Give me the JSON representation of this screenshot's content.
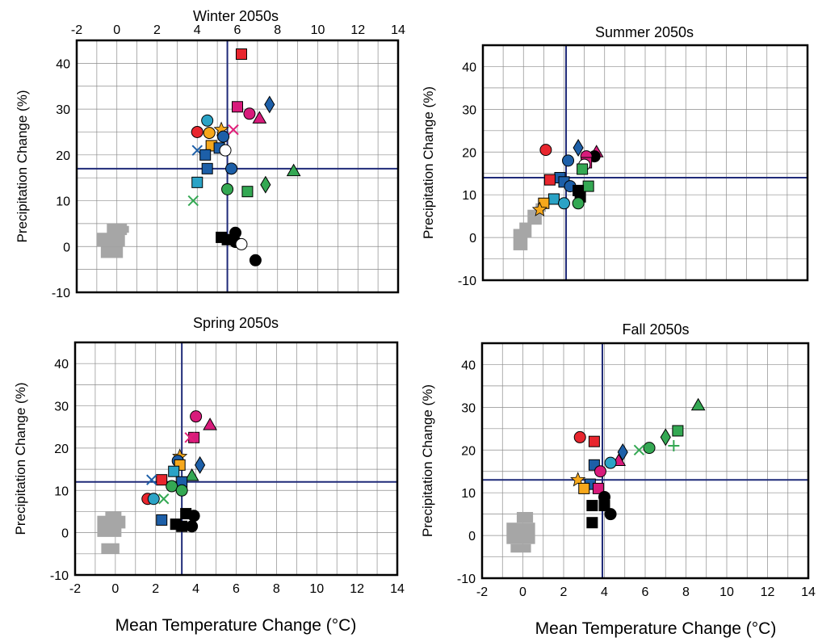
{
  "labels": {
    "y_axis": "Precipitation Change (%)",
    "x_axis": "Mean Temperature Change (°C)"
  },
  "x_ticks": [
    "-2",
    "0",
    "2",
    "4",
    "6",
    "8",
    "10",
    "12",
    "14"
  ],
  "y_ticks": [
    "-10",
    "0",
    "10",
    "20",
    "30",
    "40"
  ],
  "colors": {
    "red": "#e8262e",
    "magenta": "#d81b7b",
    "pink": "#e0207a",
    "blue": "#1d5fa8",
    "cyan": "#2ba3c6",
    "orange": "#f6a81c",
    "green": "#34a853",
    "black": "#000000",
    "gray": "#a6a6a6",
    "line": "#1f2a78"
  },
  "chart_data": [
    {
      "type": "scatter",
      "title": "Winter 2050s",
      "xlim": [
        -2,
        14
      ],
      "ylim": [
        -10,
        45
      ],
      "x_ticks_shown": "top",
      "ref_lines": {
        "x": 5.5,
        "y": 17
      },
      "points": [
        {
          "x": 6.2,
          "y": 42,
          "shape": "square",
          "color": "red"
        },
        {
          "x": 6.0,
          "y": 30.5,
          "shape": "square",
          "color": "magenta"
        },
        {
          "x": 6.6,
          "y": 29,
          "shape": "circle",
          "color": "magenta"
        },
        {
          "x": 7.1,
          "y": 28,
          "shape": "triangle",
          "color": "magenta"
        },
        {
          "x": 5.8,
          "y": 25.5,
          "shape": "x",
          "color": "pink"
        },
        {
          "x": 7.6,
          "y": 31,
          "shape": "diamond",
          "color": "blue"
        },
        {
          "x": 4.5,
          "y": 27.5,
          "shape": "circle",
          "color": "cyan"
        },
        {
          "x": 4.0,
          "y": 25,
          "shape": "circle",
          "color": "red"
        },
        {
          "x": 4.6,
          "y": 24.8,
          "shape": "circle",
          "color": "orange"
        },
        {
          "x": 5.2,
          "y": 25.5,
          "shape": "star",
          "color": "orange"
        },
        {
          "x": 5.3,
          "y": 24,
          "shape": "circle",
          "color": "blue"
        },
        {
          "x": 4.7,
          "y": 22,
          "shape": "square",
          "color": "orange"
        },
        {
          "x": 4.0,
          "y": 21,
          "shape": "x",
          "color": "blue"
        },
        {
          "x": 5.1,
          "y": 21.5,
          "shape": "square",
          "color": "blue"
        },
        {
          "x": 5.4,
          "y": 21,
          "shape": "circle",
          "color": "white"
        },
        {
          "x": 4.4,
          "y": 20,
          "shape": "square",
          "color": "blue"
        },
        {
          "x": 4.5,
          "y": 17,
          "shape": "square",
          "color": "blue"
        },
        {
          "x": 5.7,
          "y": 17,
          "shape": "circle",
          "color": "blue"
        },
        {
          "x": 8.8,
          "y": 16.5,
          "shape": "triangle",
          "color": "green"
        },
        {
          "x": 4.0,
          "y": 14,
          "shape": "square",
          "color": "cyan"
        },
        {
          "x": 7.4,
          "y": 13.5,
          "shape": "diamond",
          "color": "green"
        },
        {
          "x": 5.5,
          "y": 12.5,
          "shape": "circle",
          "color": "green"
        },
        {
          "x": 6.5,
          "y": 12,
          "shape": "square",
          "color": "green"
        },
        {
          "x": 3.8,
          "y": 10,
          "shape": "x",
          "color": "green"
        },
        {
          "x": 5.2,
          "y": 2,
          "shape": "square",
          "color": "black"
        },
        {
          "x": 5.5,
          "y": 1.5,
          "shape": "square",
          "color": "black"
        },
        {
          "x": 5.9,
          "y": 3,
          "shape": "circle",
          "color": "black"
        },
        {
          "x": 5.9,
          "y": 1,
          "shape": "circle",
          "color": "black"
        },
        {
          "x": 6.2,
          "y": 0.5,
          "shape": "circle",
          "color": "white"
        },
        {
          "x": 6.9,
          "y": -3,
          "shape": "circle",
          "color": "black"
        }
      ]
    },
    {
      "type": "scatter",
      "title": "Summer 2050s",
      "xlim": [
        -2,
        14
      ],
      "ylim": [
        -10,
        45
      ],
      "x_ticks_shown": "none",
      "ref_lines": {
        "x": 2.1,
        "y": 14
      },
      "points": [
        {
          "x": 1.1,
          "y": 20.5,
          "shape": "circle",
          "color": "red"
        },
        {
          "x": 2.7,
          "y": 21,
          "shape": "diamond",
          "color": "blue"
        },
        {
          "x": 3.6,
          "y": 20,
          "shape": "triangle",
          "color": "magenta"
        },
        {
          "x": 3.5,
          "y": 19,
          "shape": "circle",
          "color": "black"
        },
        {
          "x": 3.1,
          "y": 19,
          "shape": "circle",
          "color": "magenta"
        },
        {
          "x": 2.2,
          "y": 18,
          "shape": "circle",
          "color": "blue"
        },
        {
          "x": 3.1,
          "y": 17.5,
          "shape": "square",
          "color": "magenta"
        },
        {
          "x": 3.0,
          "y": 17,
          "shape": "circle",
          "color": "white"
        },
        {
          "x": 2.9,
          "y": 16,
          "shape": "square",
          "color": "green"
        },
        {
          "x": 1.8,
          "y": 14,
          "shape": "square",
          "color": "blue"
        },
        {
          "x": 1.3,
          "y": 13.5,
          "shape": "square",
          "color": "red"
        },
        {
          "x": 2.0,
          "y": 13,
          "shape": "square",
          "color": "blue"
        },
        {
          "x": 2.3,
          "y": 12,
          "shape": "circle",
          "color": "blue"
        },
        {
          "x": 3.2,
          "y": 12,
          "shape": "square",
          "color": "green"
        },
        {
          "x": 2.7,
          "y": 11,
          "shape": "square",
          "color": "black"
        },
        {
          "x": 2.8,
          "y": 9.5,
          "shape": "square",
          "color": "black"
        },
        {
          "x": 1.5,
          "y": 9,
          "shape": "square",
          "color": "cyan"
        },
        {
          "x": 2.0,
          "y": 8,
          "shape": "circle",
          "color": "cyan"
        },
        {
          "x": 1.0,
          "y": 8,
          "shape": "square",
          "color": "orange"
        },
        {
          "x": 2.7,
          "y": 8,
          "shape": "circle",
          "color": "green"
        },
        {
          "x": 0.8,
          "y": 6.5,
          "shape": "star",
          "color": "orange"
        }
      ]
    },
    {
      "type": "scatter",
      "title": "Spring 2050s",
      "xlim": [
        -2,
        14
      ],
      "ylim": [
        -10,
        45
      ],
      "x_ticks_shown": "bottom",
      "ref_lines": {
        "x": 3.3,
        "y": 12
      },
      "points": [
        {
          "x": 4.0,
          "y": 27.5,
          "shape": "circle",
          "color": "magenta"
        },
        {
          "x": 4.7,
          "y": 25.5,
          "shape": "triangle",
          "color": "magenta"
        },
        {
          "x": 3.9,
          "y": 22.5,
          "shape": "square",
          "color": "magenta"
        },
        {
          "x": 3.7,
          "y": 22.5,
          "shape": "x",
          "color": "pink"
        },
        {
          "x": 3.2,
          "y": 18,
          "shape": "star",
          "color": "orange"
        },
        {
          "x": 3.1,
          "y": 17,
          "shape": "circle",
          "color": "blue"
        },
        {
          "x": 3.2,
          "y": 16,
          "shape": "square",
          "color": "orange"
        },
        {
          "x": 4.2,
          "y": 16,
          "shape": "diamond",
          "color": "blue"
        },
        {
          "x": 2.9,
          "y": 14.5,
          "shape": "square",
          "color": "cyan"
        },
        {
          "x": 3.8,
          "y": 13.5,
          "shape": "triangle",
          "color": "green"
        },
        {
          "x": 2.3,
          "y": 12.5,
          "shape": "square",
          "color": "red"
        },
        {
          "x": 1.8,
          "y": 12.5,
          "shape": "x",
          "color": "blue"
        },
        {
          "x": 3.3,
          "y": 12,
          "shape": "square",
          "color": "blue"
        },
        {
          "x": 2.8,
          "y": 11,
          "shape": "circle",
          "color": "green"
        },
        {
          "x": 3.3,
          "y": 10,
          "shape": "circle",
          "color": "green"
        },
        {
          "x": 1.6,
          "y": 8,
          "shape": "circle",
          "color": "red"
        },
        {
          "x": 1.9,
          "y": 8,
          "shape": "circle",
          "color": "cyan"
        },
        {
          "x": 2.4,
          "y": 8,
          "shape": "x",
          "color": "green"
        },
        {
          "x": 3.5,
          "y": 4.5,
          "shape": "square",
          "color": "black"
        },
        {
          "x": 3.9,
          "y": 4,
          "shape": "circle",
          "color": "black"
        },
        {
          "x": 2.3,
          "y": 3,
          "shape": "square",
          "color": "blue"
        },
        {
          "x": 3.0,
          "y": 2,
          "shape": "square",
          "color": "black"
        },
        {
          "x": 3.3,
          "y": 1.5,
          "shape": "square",
          "color": "black"
        },
        {
          "x": 3.8,
          "y": 1.5,
          "shape": "circle",
          "color": "black"
        }
      ]
    },
    {
      "type": "scatter",
      "title": "Fall 2050s",
      "xlim": [
        -2,
        14
      ],
      "ylim": [
        -10,
        45
      ],
      "x_ticks_shown": "bottom",
      "ref_lines": {
        "x": 3.9,
        "y": 13
      },
      "points": [
        {
          "x": 8.6,
          "y": 30.5,
          "shape": "triangle",
          "color": "green"
        },
        {
          "x": 7.6,
          "y": 24.5,
          "shape": "square",
          "color": "green"
        },
        {
          "x": 7.0,
          "y": 23,
          "shape": "diamond",
          "color": "green"
        },
        {
          "x": 2.8,
          "y": 23,
          "shape": "circle",
          "color": "red"
        },
        {
          "x": 3.5,
          "y": 22,
          "shape": "square",
          "color": "red"
        },
        {
          "x": 7.4,
          "y": 21,
          "shape": "plus",
          "color": "green"
        },
        {
          "x": 6.2,
          "y": 20.5,
          "shape": "circle",
          "color": "green"
        },
        {
          "x": 5.7,
          "y": 20,
          "shape": "x",
          "color": "green"
        },
        {
          "x": 4.9,
          "y": 19.5,
          "shape": "diamond",
          "color": "blue"
        },
        {
          "x": 4.7,
          "y": 17.5,
          "shape": "triangle",
          "color": "magenta"
        },
        {
          "x": 4.3,
          "y": 17,
          "shape": "circle",
          "color": "cyan"
        },
        {
          "x": 3.5,
          "y": 16.5,
          "shape": "square",
          "color": "blue"
        },
        {
          "x": 3.8,
          "y": 15,
          "shape": "circle",
          "color": "magenta"
        },
        {
          "x": 2.7,
          "y": 13,
          "shape": "star",
          "color": "orange"
        },
        {
          "x": 3.3,
          "y": 12,
          "shape": "square",
          "color": "blue"
        },
        {
          "x": 3.0,
          "y": 11,
          "shape": "square",
          "color": "orange"
        },
        {
          "x": 3.7,
          "y": 11,
          "shape": "square",
          "color": "magenta"
        },
        {
          "x": 4.0,
          "y": 9,
          "shape": "circle",
          "color": "black"
        },
        {
          "x": 3.4,
          "y": 7,
          "shape": "square",
          "color": "black"
        },
        {
          "x": 4.0,
          "y": 7,
          "shape": "square",
          "color": "black"
        },
        {
          "x": 4.3,
          "y": 5,
          "shape": "circle",
          "color": "black"
        },
        {
          "x": 3.4,
          "y": 3,
          "shape": "square",
          "color": "black"
        }
      ]
    }
  ]
}
